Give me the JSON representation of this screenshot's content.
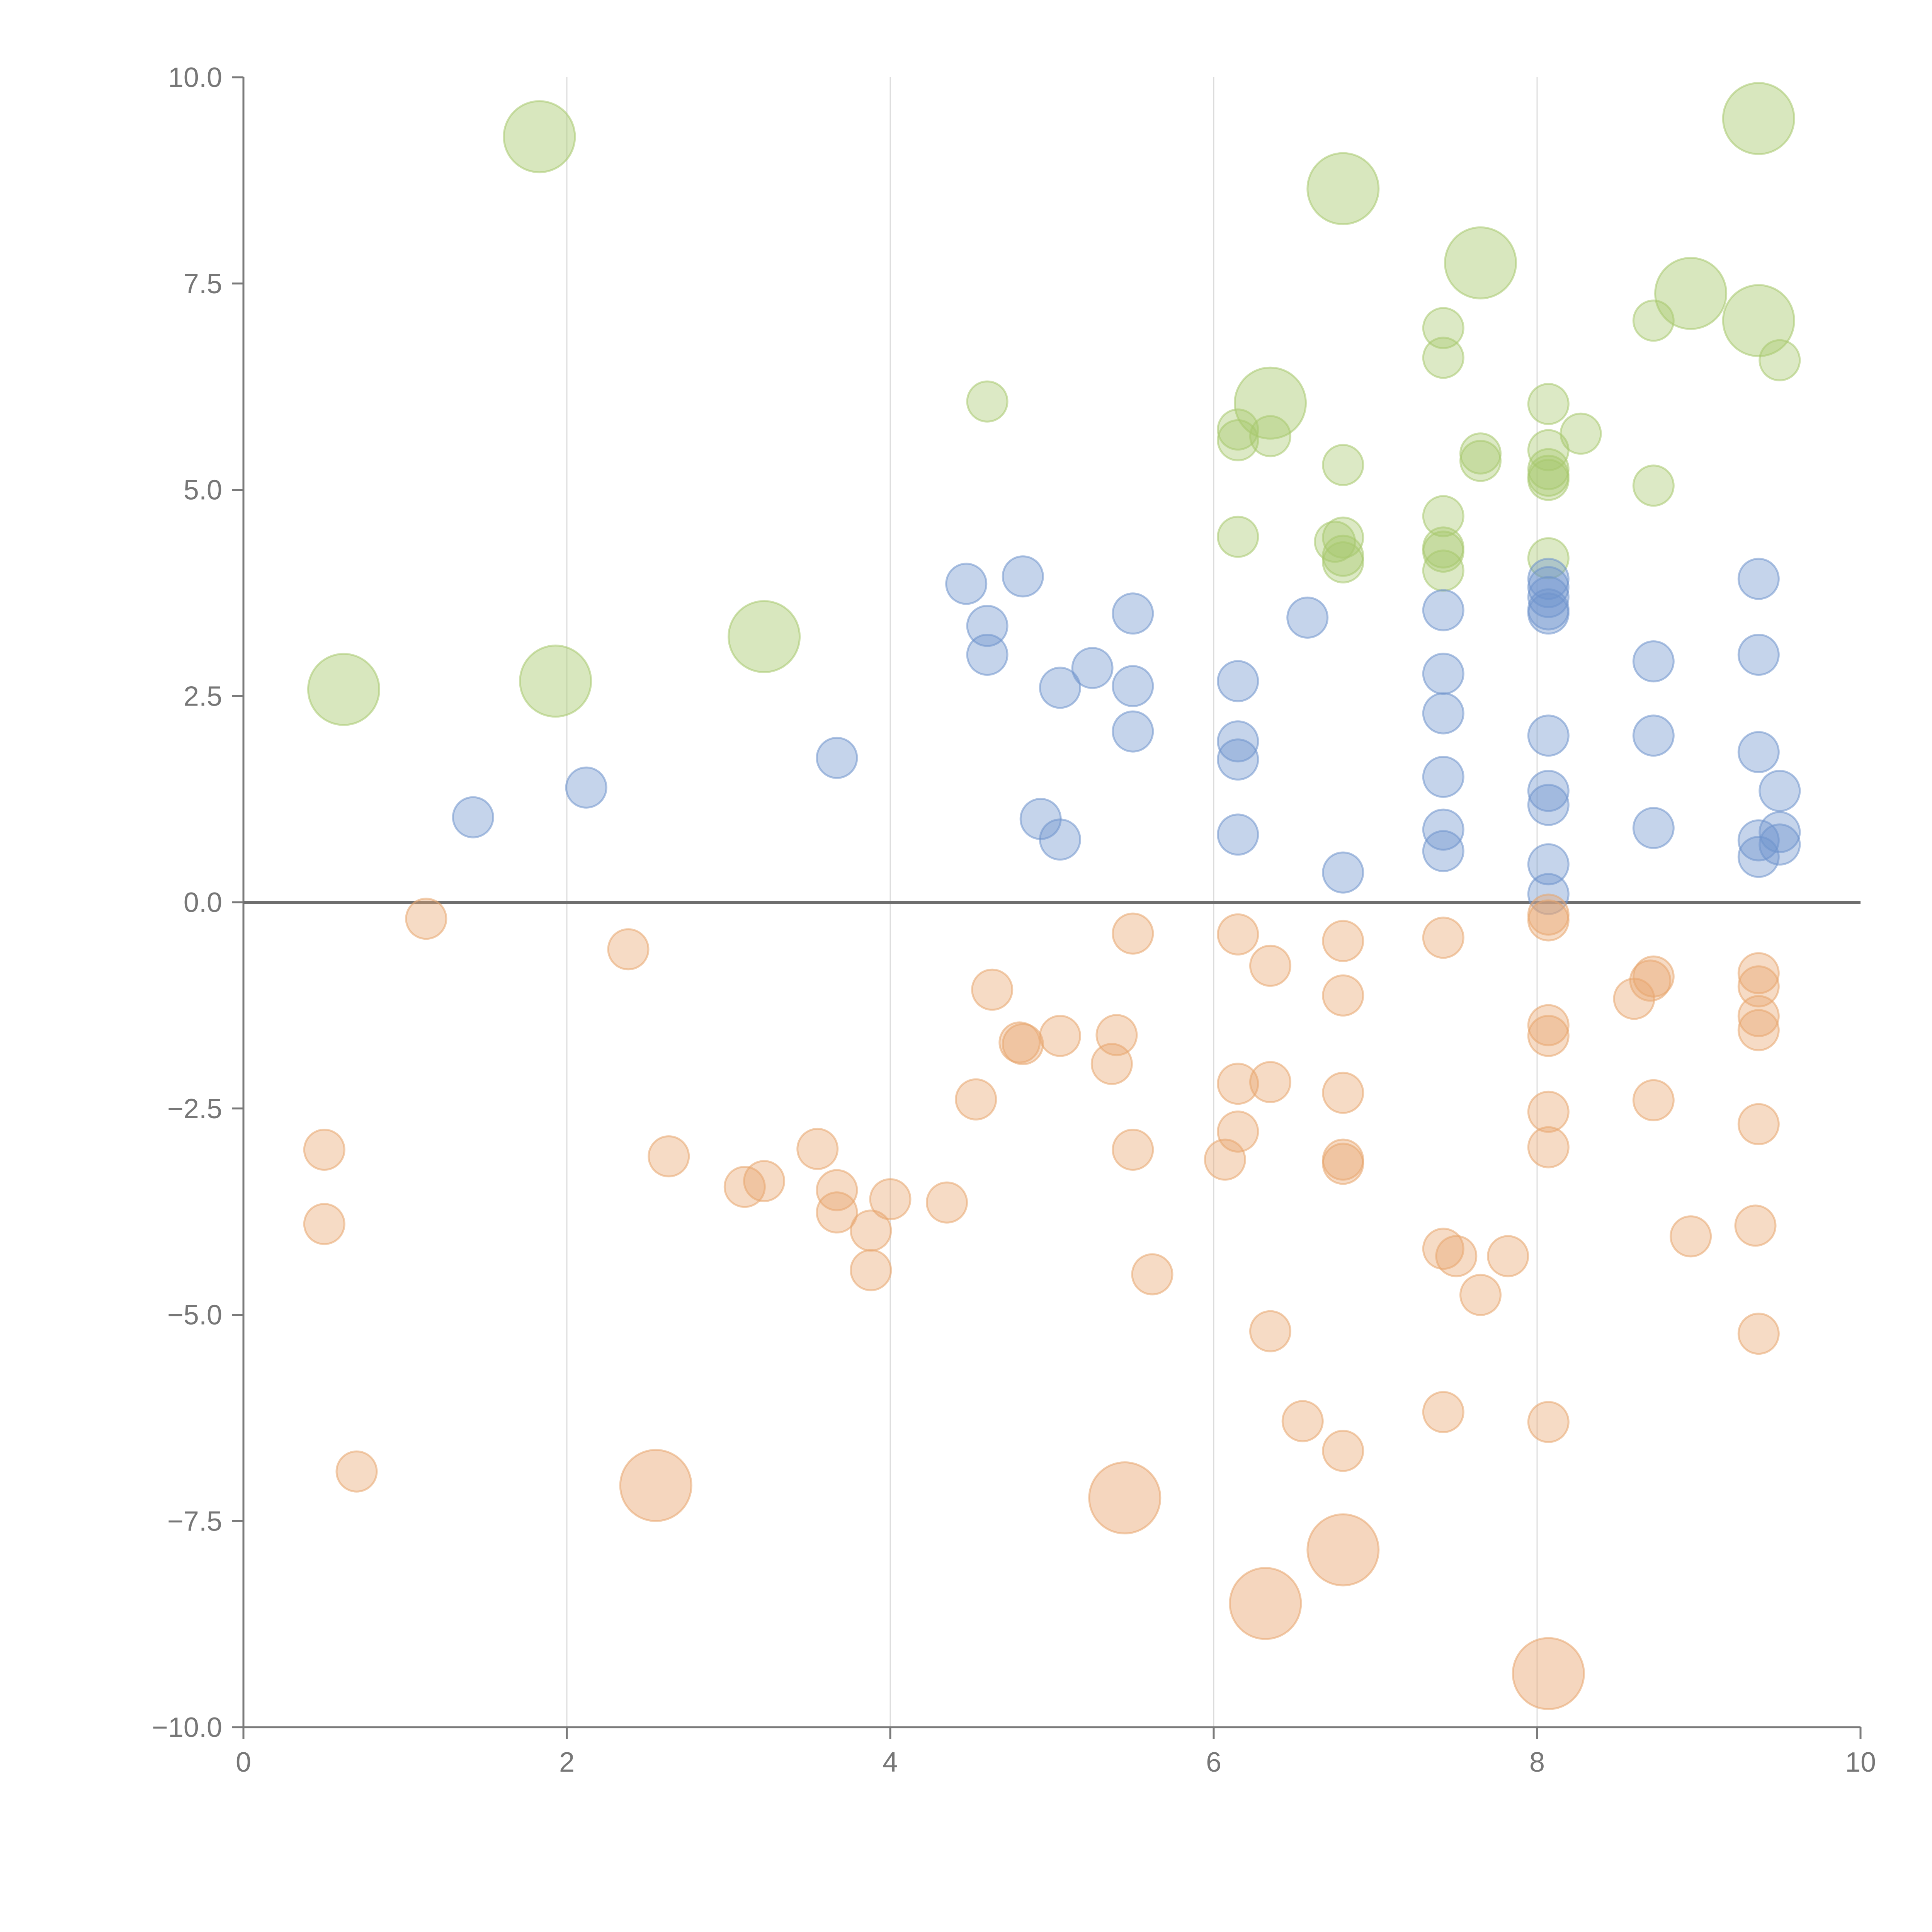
{
  "chart_data": {
    "type": "scatter",
    "title": "",
    "xlabel": "",
    "ylabel": "",
    "xlim": [
      0,
      10
    ],
    "ylim": [
      -10,
      10
    ],
    "x_ticks": [
      "0",
      "2",
      "4",
      "6",
      "8",
      "10"
    ],
    "y_ticks": [
      "10.0",
      "7.5",
      "5.0",
      "2.5",
      "0.0",
      "−2.5",
      "−5.0",
      "−7.5",
      "−10.0"
    ],
    "x_tick_values": [
      0,
      2,
      4,
      6,
      8,
      10
    ],
    "y_tick_values": [
      10,
      7.5,
      5,
      2.5,
      0,
      -2.5,
      -5,
      -7.5,
      -10
    ],
    "vertical_grid_at": [
      2,
      4,
      6,
      8
    ],
    "zero_line_y": 0,
    "legend": "none",
    "colors": {
      "green": "#a8c96e",
      "blue": "#6f93cc",
      "orange": "#e8a56e",
      "axis": "#7a7a7a",
      "grid": "#dcdcdc"
    },
    "series": [
      {
        "name": "green-small",
        "color": "#a8c96e",
        "size": "small",
        "points": [
          [
            4.6,
            6.07
          ],
          [
            6.15,
            5.73
          ],
          [
            6.15,
            5.6
          ],
          [
            6.35,
            5.65
          ],
          [
            6.15,
            4.43
          ],
          [
            6.75,
            4.37
          ],
          [
            6.8,
            4.42
          ],
          [
            6.8,
            5.3
          ],
          [
            6.8,
            4.2
          ],
          [
            6.8,
            4.12
          ],
          [
            7.42,
            6.96
          ],
          [
            7.42,
            6.6
          ],
          [
            7.42,
            4.68
          ],
          [
            7.42,
            4.3
          ],
          [
            7.42,
            4.25
          ],
          [
            7.42,
            4.02
          ],
          [
            7.65,
            5.44
          ],
          [
            7.65,
            5.35
          ],
          [
            8.07,
            6.04
          ],
          [
            8.07,
            5.48
          ],
          [
            8.07,
            5.25
          ],
          [
            8.07,
            5.17
          ],
          [
            8.07,
            5.12
          ],
          [
            8.07,
            4.17
          ],
          [
            8.27,
            5.68
          ],
          [
            8.72,
            7.05
          ],
          [
            8.72,
            5.05
          ],
          [
            9.5,
            6.57
          ]
        ]
      },
      {
        "name": "green-large",
        "color": "#a8c96e",
        "size": "large",
        "points": [
          [
            0.62,
            2.58
          ],
          [
            1.83,
            9.28
          ],
          [
            1.93,
            2.68
          ],
          [
            3.22,
            3.22
          ],
          [
            6.35,
            6.05
          ],
          [
            6.8,
            8.65
          ],
          [
            7.65,
            7.75
          ],
          [
            8.95,
            7.38
          ],
          [
            9.37,
            9.5
          ],
          [
            9.37,
            7.05
          ]
        ]
      },
      {
        "name": "blue",
        "color": "#6f93cc",
        "size": "small",
        "points": [
          [
            1.42,
            1.03
          ],
          [
            2.12,
            1.39
          ],
          [
            3.67,
            1.75
          ],
          [
            4.47,
            3.86
          ],
          [
            4.6,
            3.35
          ],
          [
            4.6,
            3.0
          ],
          [
            4.82,
            3.95
          ],
          [
            4.93,
            1.01
          ],
          [
            5.05,
            2.6
          ],
          [
            5.05,
            0.76
          ],
          [
            5.25,
            2.84
          ],
          [
            5.5,
            3.5
          ],
          [
            5.5,
            2.62
          ],
          [
            5.5,
            2.07
          ],
          [
            6.15,
            2.68
          ],
          [
            6.15,
            1.95
          ],
          [
            6.15,
            1.73
          ],
          [
            6.15,
            0.82
          ],
          [
            6.58,
            3.45
          ],
          [
            6.8,
            0.36
          ],
          [
            7.42,
            3.54
          ],
          [
            7.42,
            2.77
          ],
          [
            7.42,
            2.29
          ],
          [
            7.42,
            1.52
          ],
          [
            7.42,
            0.88
          ],
          [
            7.42,
            0.62
          ],
          [
            8.07,
            3.92
          ],
          [
            8.07,
            3.82
          ],
          [
            8.07,
            3.7
          ],
          [
            8.07,
            3.55
          ],
          [
            8.07,
            3.5
          ],
          [
            8.07,
            2.02
          ],
          [
            8.07,
            1.35
          ],
          [
            8.07,
            1.18
          ],
          [
            8.07,
            0.46
          ],
          [
            8.07,
            0.1
          ],
          [
            8.72,
            2.92
          ],
          [
            8.72,
            2.02
          ],
          [
            8.72,
            0.9
          ],
          [
            9.37,
            3.92
          ],
          [
            9.37,
            3.0
          ],
          [
            9.37,
            1.82
          ],
          [
            9.37,
            0.75
          ],
          [
            9.37,
            0.55
          ],
          [
            9.5,
            1.35
          ],
          [
            9.5,
            0.85
          ],
          [
            9.5,
            0.7
          ]
        ]
      },
      {
        "name": "orange-small",
        "color": "#e8a56e",
        "size": "small",
        "points": [
          [
            1.13,
            -0.2
          ],
          [
            2.38,
            -0.57
          ],
          [
            0.5,
            -3.0
          ],
          [
            0.5,
            -3.9
          ],
          [
            0.7,
            -6.9
          ],
          [
            2.63,
            -3.08
          ],
          [
            3.1,
            -3.45
          ],
          [
            3.22,
            -3.38
          ],
          [
            3.55,
            -2.99
          ],
          [
            3.67,
            -3.49
          ],
          [
            3.67,
            -3.76
          ],
          [
            3.88,
            -3.98
          ],
          [
            3.88,
            -4.46
          ],
          [
            4.0,
            -3.6
          ],
          [
            4.35,
            -3.64
          ],
          [
            4.53,
            -2.39
          ],
          [
            4.63,
            -1.06
          ],
          [
            4.8,
            -1.7
          ],
          [
            4.82,
            -1.72
          ],
          [
            5.05,
            -1.62
          ],
          [
            5.37,
            -1.96
          ],
          [
            5.4,
            -1.61
          ],
          [
            5.5,
            -0.38
          ],
          [
            5.5,
            -3.0
          ],
          [
            5.62,
            -4.51
          ],
          [
            6.07,
            -3.12
          ],
          [
            6.15,
            -0.39
          ],
          [
            6.15,
            -2.2
          ],
          [
            6.15,
            -2.78
          ],
          [
            6.35,
            -0.77
          ],
          [
            6.35,
            -2.18
          ],
          [
            6.35,
            -5.2
          ],
          [
            6.55,
            -6.29
          ],
          [
            6.8,
            -0.47
          ],
          [
            6.8,
            -1.13
          ],
          [
            6.8,
            -2.31
          ],
          [
            6.8,
            -3.12
          ],
          [
            6.8,
            -3.17
          ],
          [
            6.8,
            -6.65
          ],
          [
            7.42,
            -0.43
          ],
          [
            7.42,
            -4.2
          ],
          [
            7.42,
            -6.18
          ],
          [
            7.5,
            -4.29
          ],
          [
            7.65,
            -4.76
          ],
          [
            7.82,
            -4.29
          ],
          [
            8.07,
            -0.15
          ],
          [
            8.07,
            -0.22
          ],
          [
            8.07,
            -1.49
          ],
          [
            8.07,
            -1.62
          ],
          [
            8.07,
            -2.54
          ],
          [
            8.07,
            -2.97
          ],
          [
            8.07,
            -6.3
          ],
          [
            8.6,
            -1.17
          ],
          [
            8.7,
            -0.95
          ],
          [
            8.72,
            -0.9
          ],
          [
            8.72,
            -2.4
          ],
          [
            8.95,
            -4.05
          ],
          [
            9.35,
            -3.92
          ],
          [
            9.37,
            -0.86
          ],
          [
            9.37,
            -1.02
          ],
          [
            9.37,
            -1.38
          ],
          [
            9.37,
            -1.55
          ],
          [
            9.37,
            -2.69
          ],
          [
            9.37,
            -5.23
          ]
        ]
      },
      {
        "name": "orange-large",
        "color": "#e8a56e",
        "size": "large",
        "points": [
          [
            2.55,
            -7.07
          ],
          [
            5.45,
            -7.22
          ],
          [
            6.32,
            -8.5
          ],
          [
            6.8,
            -7.85
          ],
          [
            8.07,
            -9.35
          ]
        ]
      }
    ]
  }
}
